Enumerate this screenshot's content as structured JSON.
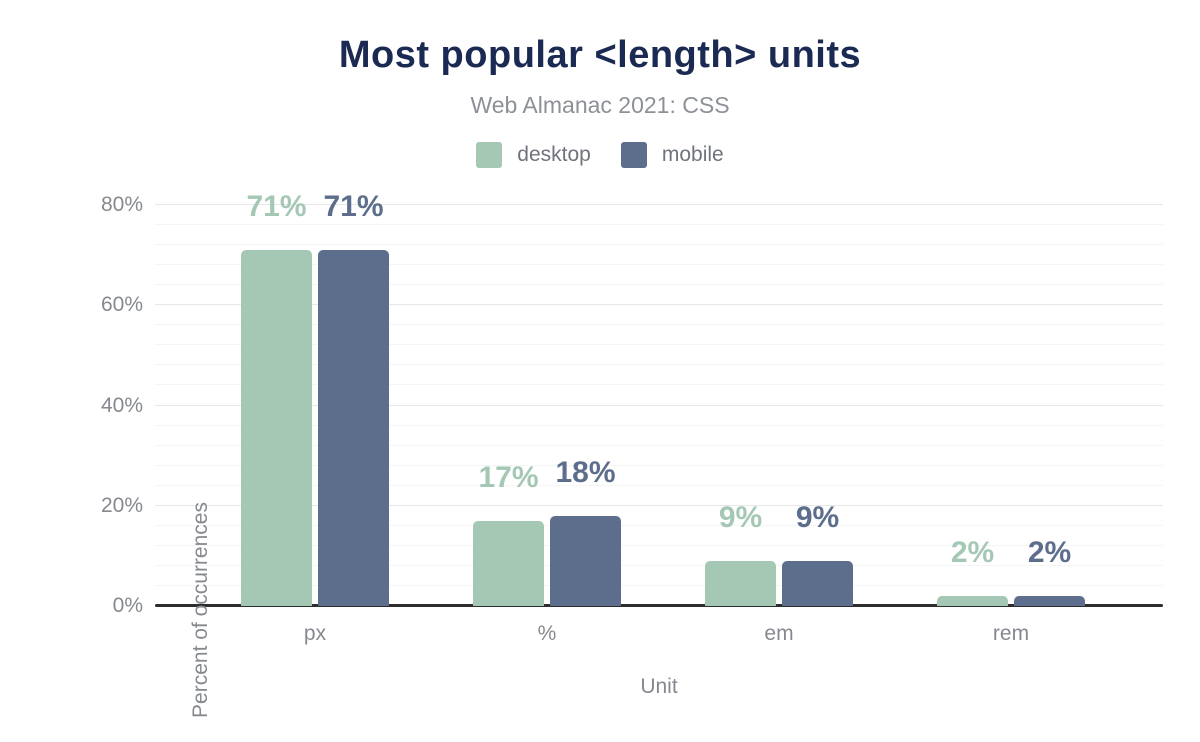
{
  "header": {
    "title": "Most popular <length> units",
    "subtitle": "Web Almanac 2021: CSS"
  },
  "legend": {
    "items": [
      {
        "label": "desktop",
        "color": "#a5c8b5"
      },
      {
        "label": "mobile",
        "color": "#5d6e8c"
      }
    ]
  },
  "chart_data": {
    "type": "bar",
    "categories": [
      "px",
      "%",
      "em",
      "rem"
    ],
    "series": [
      {
        "name": "desktop",
        "color": "#a5c8b5",
        "values": [
          71,
          17,
          9,
          2
        ],
        "labels": [
          "71%",
          "17%",
          "9%",
          "2%"
        ]
      },
      {
        "name": "mobile",
        "color": "#5d6e8c",
        "values": [
          71,
          18,
          9,
          2
        ],
        "labels": [
          "71%",
          "18%",
          "9%",
          "2%"
        ]
      }
    ],
    "title": "Most popular <length> units",
    "subtitle": "Web Almanac 2021: CSS",
    "xlabel": "Unit",
    "ylabel": "Percent of occurrences",
    "ylim": [
      0,
      80
    ],
    "yticks": [
      0,
      20,
      40,
      60,
      80
    ],
    "ytick_labels": [
      "0%",
      "20%",
      "40%",
      "60%",
      "80%"
    ],
    "minor_gridline_step": 4,
    "major_gridline_step": 20,
    "grid": true,
    "legend_position": "top"
  },
  "colors": {
    "title_text": "#1b2a52",
    "subtitle_text": "#8d9197",
    "axis_text": "#86898f",
    "legend_text": "#6f747c",
    "grid_minor": "#f5f5f5",
    "grid_major": "#e8e8e8",
    "baseline": "#2d2d2d",
    "background": "#ffffff"
  }
}
